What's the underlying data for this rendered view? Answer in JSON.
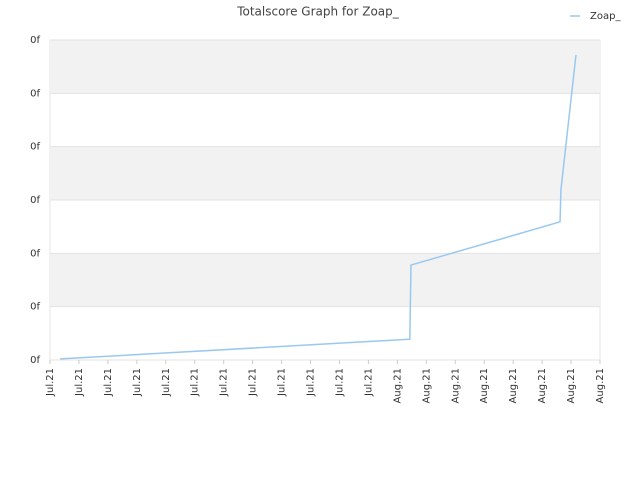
{
  "chart_data": {
    "type": "line",
    "title": "Totalscore Graph for Zoap_",
    "series": [
      {
        "name": "Zoap_",
        "color": "#99c9f0",
        "x": [
          0.35,
          12.43,
          12.47,
          17.62,
          17.65,
          18.17
        ],
        "values": [
          0.02,
          0.39,
          1.78,
          2.59,
          3.19,
          5.72
        ]
      }
    ],
    "xlim": [
      0,
      19
    ],
    "xticks": [
      {
        "value": 0,
        "label": "Jul.21"
      },
      {
        "value": 1,
        "label": "Jul.21"
      },
      {
        "value": 2,
        "label": "Jul.21"
      },
      {
        "value": 3,
        "label": "Jul.21"
      },
      {
        "value": 4,
        "label": "Jul.21"
      },
      {
        "value": 5,
        "label": "Jul.21"
      },
      {
        "value": 6,
        "label": "Jul.21"
      },
      {
        "value": 7,
        "label": "Jul.21"
      },
      {
        "value": 8,
        "label": "Jul.21"
      },
      {
        "value": 9,
        "label": "Jul.21"
      },
      {
        "value": 10,
        "label": "Jul.21"
      },
      {
        "value": 11,
        "label": "Jul.21"
      },
      {
        "value": 12,
        "label": "Aug.21"
      },
      {
        "value": 13,
        "label": "Aug.21"
      },
      {
        "value": 14,
        "label": "Aug.21"
      },
      {
        "value": 15,
        "label": "Aug.21"
      },
      {
        "value": 16,
        "label": "Aug.21"
      },
      {
        "value": 17,
        "label": "Aug.21"
      },
      {
        "value": 18,
        "label": "Aug.21"
      },
      {
        "value": 19,
        "label": "Aug.21"
      }
    ],
    "ylim": [
      0,
      6
    ],
    "yticks": [
      {
        "value": 0,
        "label": "0f"
      },
      {
        "value": 1,
        "label": "0f"
      },
      {
        "value": 2,
        "label": "0f"
      },
      {
        "value": 3,
        "label": "0f"
      },
      {
        "value": 4,
        "label": "0f"
      },
      {
        "value": 5,
        "label": "0f"
      },
      {
        "value": 6,
        "label": "0f"
      }
    ],
    "grid": true,
    "legend": "top-right"
  }
}
